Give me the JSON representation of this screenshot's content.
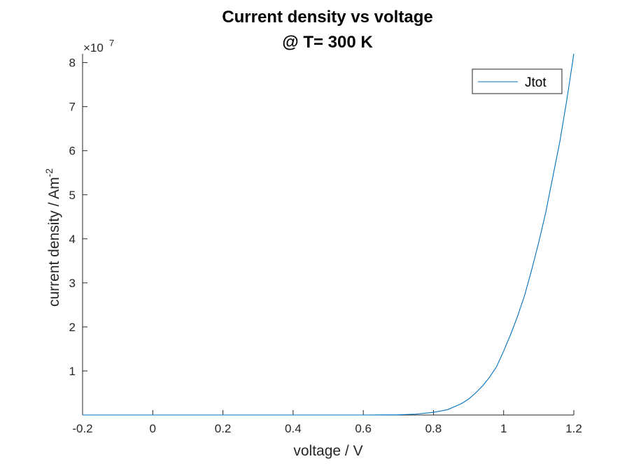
{
  "chart_data": {
    "type": "line",
    "title": [
      "Current density vs voltage",
      "@ T= 300 K"
    ],
    "xlabel": "voltage  / V",
    "ylabel_main": "current density  / Am",
    "ylabel_superscript": "-2",
    "y_exponent_label": "×10",
    "y_exponent_power": "7",
    "xlim": [
      -0.2,
      1.2
    ],
    "ylim": [
      0,
      8.2
    ],
    "xticks": [
      -0.2,
      0,
      0.2,
      0.4,
      0.6,
      0.8,
      1,
      1.2
    ],
    "xtick_labels": [
      "-0.2",
      "0",
      "0.2",
      "0.4",
      "0.6",
      "0.8",
      "1",
      "1.2"
    ],
    "yticks": [
      1,
      2,
      3,
      4,
      5,
      6,
      7,
      8
    ],
    "ytick_labels": [
      "1",
      "2",
      "3",
      "4",
      "5",
      "6",
      "7",
      "8"
    ],
    "grid": false,
    "legend_position": "top-right",
    "series": [
      {
        "name": "Jtot",
        "color": "#0072BD",
        "x": [
          -0.2,
          0.0,
          0.2,
          0.4,
          0.6,
          0.7,
          0.75,
          0.8,
          0.84,
          0.88,
          0.9,
          0.92,
          0.94,
          0.96,
          0.98,
          1.0,
          1.02,
          1.04,
          1.06,
          1.08,
          1.1,
          1.12,
          1.14,
          1.16,
          1.18,
          1.2
        ],
        "y": [
          0,
          0,
          0,
          0,
          0,
          0.005,
          0.02,
          0.06,
          0.12,
          0.26,
          0.36,
          0.5,
          0.66,
          0.86,
          1.1,
          1.45,
          1.83,
          2.25,
          2.72,
          3.3,
          3.92,
          4.6,
          5.4,
          6.2,
          7.15,
          8.2
        ]
      }
    ]
  }
}
